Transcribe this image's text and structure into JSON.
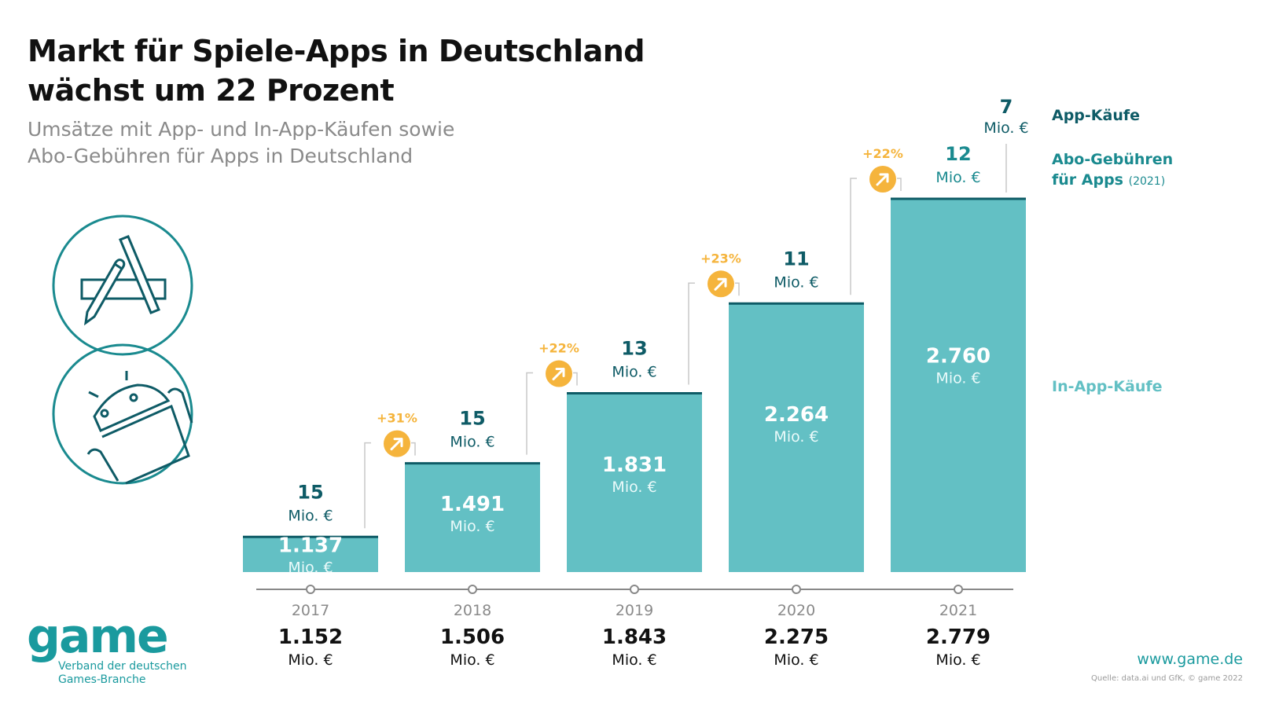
{
  "header": {
    "title_line1": "Markt für Spiele-Apps in Deutschland",
    "title_line2": "wächst um 22 Prozent",
    "subtitle_line1": "Umsätze mit App- und In-App-Käufen sowie",
    "subtitle_line2": "Abo-Gebühren für Apps in Deutschland"
  },
  "icons": [
    "app-store-icon",
    "android-icon"
  ],
  "legend": {
    "app_kaeufe": "App-Käufe",
    "abo_line1": "Abo-Gebühren",
    "abo_line2": "für Apps",
    "abo_note": "(2021)",
    "in_app": "In-App-Käufe"
  },
  "colors": {
    "in_app_bar": "#63c0c4",
    "bar_top_line": "#0e5b66",
    "dark_teal_text": "#0e5b66",
    "abo_teal_text": "#1a8a8f",
    "growth_badge": "#f5b43c",
    "connector": "#c8c8c8",
    "timeline": "#888888",
    "brand": "#1a9a9e"
  },
  "unit": "Mio. €",
  "chart_data": {
    "type": "bar",
    "title": "Markt für Spiele-Apps in Deutschland wächst um 22 Prozent",
    "subtitle": "Umsätze mit App- und In-App-Käufen sowie Abo-Gebühren für Apps in Deutschland",
    "xlabel": "",
    "ylabel": "Mio. €",
    "categories": [
      "2017",
      "2018",
      "2019",
      "2020",
      "2021"
    ],
    "stacked": true,
    "series": [
      {
        "name": "In-App-Käufe",
        "values": [
          1137,
          1491,
          1831,
          2264,
          2760
        ],
        "labels": [
          "1.137",
          "1.491",
          "1.831",
          "2.264",
          "2.760"
        ]
      },
      {
        "name": "App-Käufe",
        "values": [
          15,
          15,
          13,
          11,
          7
        ],
        "labels": [
          "15",
          "15",
          "13",
          "11",
          "7"
        ]
      },
      {
        "name": "Abo-Gebühren für Apps (2021)",
        "values": [
          0,
          0,
          0,
          0,
          12
        ],
        "labels": [
          "",
          "",
          "",
          "",
          "12"
        ]
      }
    ],
    "totals": [
      1152,
      1506,
      1843,
      2275,
      2779
    ],
    "total_labels": [
      "1.152",
      "1.506",
      "1.843",
      "2.275",
      "2.779"
    ],
    "growth": [
      "+31%",
      "+22%",
      "+23%",
      "+22%"
    ],
    "growth_between": [
      [
        "2017",
        "2018"
      ],
      [
        "2018",
        "2019"
      ],
      [
        "2019",
        "2020"
      ],
      [
        "2020",
        "2021"
      ]
    ],
    "ylim": [
      0,
      2779
    ],
    "grid": false,
    "legend_position": "right"
  },
  "footer": {
    "logo_word": "game",
    "logo_tag_line1": "Verband der deutschen",
    "logo_tag_line2": "Games-Branche",
    "url": "www.game.de",
    "source": "Quelle: data.ai und GfK, © game 2022"
  }
}
